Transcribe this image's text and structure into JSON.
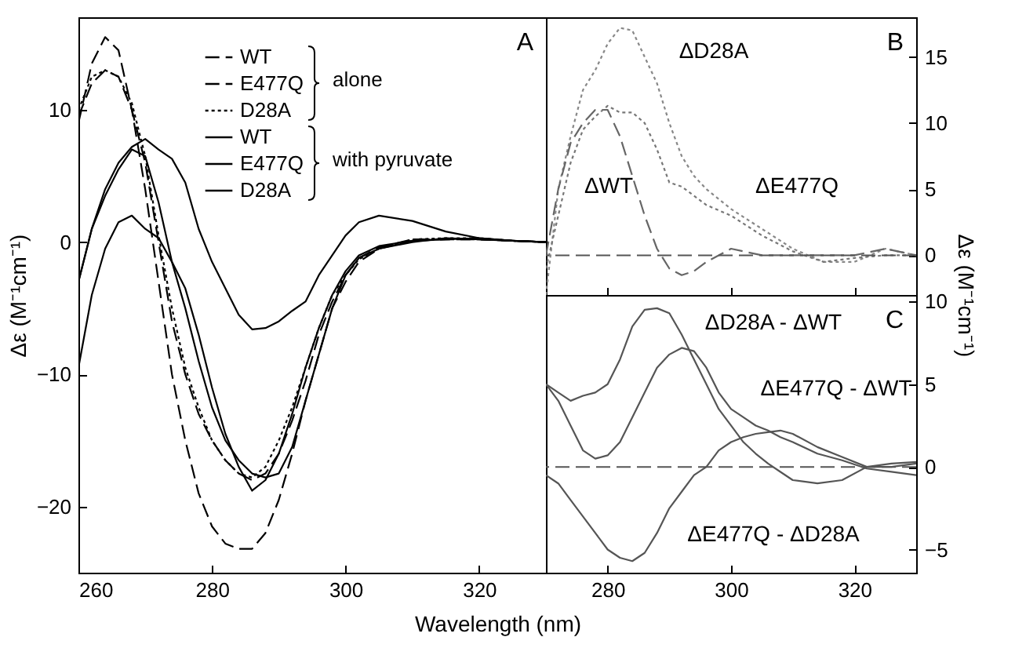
{
  "chart_data": [
    {
      "type": "line",
      "title": "A",
      "xlabel": "Wavelength (nm)",
      "ylabel": "Δε (M⁻¹cm⁻¹)",
      "annotations": [
        "alone",
        "with pyruvate"
      ],
      "xlim": [
        260,
        330
      ],
      "ylim": [
        -25,
        17
      ],
      "xticks": [
        260,
        280,
        300,
        320
      ],
      "yticks": [
        -20,
        -10,
        0,
        10
      ],
      "legend": "top",
      "x": [
        260,
        262,
        264,
        266,
        268,
        270,
        272,
        274,
        276,
        278,
        280,
        282,
        284,
        286,
        288,
        290,
        292,
        294,
        296,
        298,
        300,
        302,
        305,
        310,
        315,
        320,
        325,
        330
      ],
      "series": [
        {
          "name": "WT",
          "color": "#000000",
          "line_style": "dashed",
          "values": [
            9,
            13.5,
            15.5,
            14.5,
            10,
            4,
            -3,
            -10,
            -15,
            -19,
            -21.5,
            -22.8,
            -23.2,
            -23.2,
            -22,
            -19.5,
            -16,
            -12,
            -8.5,
            -5,
            -3,
            -1.5,
            -0.5,
            0.1,
            0.2,
            0.2,
            0.1,
            0
          ]
        },
        {
          "name": "E477Q",
          "color": "#000000",
          "line_style": "dashed",
          "values": [
            9.5,
            12,
            13,
            12.5,
            10,
            6,
            0,
            -6,
            -10,
            -13,
            -15,
            -16.5,
            -17.5,
            -18,
            -17.5,
            -16,
            -13.5,
            -10.5,
            -7,
            -4.5,
            -2.5,
            -1.2,
            -0.4,
            0.2,
            0.2,
            0.2,
            0.1,
            0
          ]
        },
        {
          "name": "D28A",
          "color": "#000000",
          "line_style": "dotted",
          "values": [
            10,
            12.5,
            13,
            12.5,
            10.5,
            6.5,
            0.5,
            -5,
            -9.5,
            -12.5,
            -15,
            -16.5,
            -17.5,
            -17.8,
            -17,
            -15,
            -12.5,
            -9.5,
            -6.5,
            -4,
            -2.5,
            -1.3,
            -0.5,
            0.2,
            0.3,
            0.3,
            0.1,
            0
          ]
        },
        {
          "name": "WT",
          "color": "#000000",
          "line_style": "solid",
          "values": [
            -3,
            1,
            4,
            6,
            7.2,
            7.8,
            7,
            6.3,
            4.5,
            1,
            -1.5,
            -3.5,
            -5.5,
            -6.6,
            -6.5,
            -6,
            -5.2,
            -4.5,
            -2.5,
            -1,
            0.5,
            1.5,
            2,
            1.6,
            0.8,
            0.3,
            0.1,
            0
          ]
        },
        {
          "name": "E477Q",
          "color": "#000000",
          "line_style": "solid",
          "values": [
            -3,
            1,
            3.5,
            5.5,
            7,
            6.5,
            3,
            -1.5,
            -5,
            -9,
            -12.5,
            -15,
            -16.5,
            -17.5,
            -17.8,
            -17.5,
            -15.5,
            -12,
            -8.5,
            -5,
            -2.5,
            -1.2,
            -0.5,
            0,
            0.3,
            0.2,
            0.1,
            0
          ]
        },
        {
          "name": "D28A",
          "color": "#000000",
          "line_style": "solid",
          "values": [
            -9.5,
            -4,
            -0.5,
            1.5,
            2,
            1,
            0.3,
            -1.5,
            -3.5,
            -7,
            -11,
            -14.5,
            -17,
            -18.8,
            -18,
            -16,
            -13,
            -9.5,
            -6.5,
            -4,
            -2.2,
            -1,
            -0.3,
            0.1,
            0.2,
            0.3,
            0.1,
            0
          ]
        }
      ]
    },
    {
      "type": "line",
      "title": "B",
      "ylabel": "Δε (M⁻¹cm⁻¹)",
      "xlim": [
        270,
        330
      ],
      "ylim": [
        -3,
        18
      ],
      "xticks": [
        280,
        300,
        320
      ],
      "yticks": [
        0,
        5,
        10,
        15
      ],
      "tick_labels": "y",
      "x": [
        270,
        272,
        274,
        276,
        278,
        280,
        282,
        284,
        286,
        288,
        290,
        292,
        294,
        296,
        300,
        305,
        310,
        315,
        320,
        325,
        330
      ],
      "ref_lines": [
        {
          "axis": "y",
          "value": 0,
          "color": "#555555",
          "line_style": "dashed"
        }
      ],
      "series": [
        {
          "name": "ΔD28A",
          "color": "#888888",
          "line_style": "dotted",
          "values": [
            -3,
            5,
            9,
            12.5,
            14,
            16,
            17.2,
            17,
            15,
            13,
            10,
            7.5,
            6,
            5,
            3.5,
            2,
            0.5,
            -0.5,
            -0.5,
            0.5,
            0
          ]
        },
        {
          "name": "ΔWT",
          "color": "#666666",
          "line_style": "dashed",
          "values": [
            0,
            5,
            8.5,
            10,
            11,
            11,
            9,
            6,
            3,
            0.5,
            -1,
            -1.5,
            -1.2,
            -0.5,
            0.5,
            0,
            0,
            0,
            0,
            0.5,
            0
          ]
        },
        {
          "name": "ΔE477Q",
          "color": "#777777",
          "line_style": "dotted",
          "values": [
            -1,
            3,
            7,
            9.5,
            10.5,
            11.3,
            10.8,
            10.8,
            10,
            8,
            5.5,
            5.2,
            4.5,
            3.8,
            3,
            1.5,
            0.3,
            -0.5,
            -0.2,
            0,
            0
          ]
        }
      ]
    },
    {
      "type": "line",
      "title": "C",
      "xlim": [
        270,
        330
      ],
      "ylim": [
        -6.4,
        10.4
      ],
      "xticks": [
        280,
        300,
        320
      ],
      "yticks": [
        -5,
        0,
        5,
        10
      ],
      "x": [
        270,
        272,
        274,
        276,
        278,
        280,
        282,
        284,
        286,
        288,
        290,
        292,
        294,
        296,
        298,
        300,
        302,
        304,
        306,
        308,
        310,
        314,
        318,
        322,
        326,
        330
      ],
      "ref_lines": [
        {
          "axis": "y",
          "value": 0,
          "color": "#555555",
          "line_style": "dashed"
        }
      ],
      "series": [
        {
          "name": "ΔD28A - ΔWT",
          "color": "#555555",
          "line_style": "solid",
          "values": [
            5,
            4.5,
            4,
            4.3,
            4.5,
            5,
            6.5,
            8.5,
            9.5,
            9.6,
            9.3,
            8,
            6.5,
            5,
            3.5,
            2.5,
            1.5,
            0.8,
            0.2,
            -0.3,
            -0.8,
            -1,
            -0.8,
            0,
            0.2,
            0.3
          ]
        },
        {
          "name": "ΔE477Q - ΔWT",
          "color": "#555555",
          "line_style": "solid",
          "values": [
            5,
            4,
            2.5,
            1,
            0.5,
            0.7,
            1.5,
            3,
            4.5,
            6,
            6.8,
            7.2,
            7,
            6,
            4.5,
            3.5,
            3,
            2.5,
            2.2,
            1.8,
            1.5,
            0.8,
            0.4,
            -0.1,
            -0.3,
            -0.5
          ]
        },
        {
          "name": "ΔE477Q - ΔD28A",
          "color": "#555555",
          "line_style": "solid",
          "values": [
            -0.5,
            -1,
            -2,
            -3,
            -4,
            -5,
            -5.5,
            -5.7,
            -5.2,
            -4,
            -2.5,
            -1.5,
            -0.5,
            0,
            1,
            1.5,
            1.8,
            2,
            2.1,
            2.2,
            2,
            1.2,
            0.6,
            0,
            0,
            0.2
          ]
        }
      ]
    }
  ]
}
